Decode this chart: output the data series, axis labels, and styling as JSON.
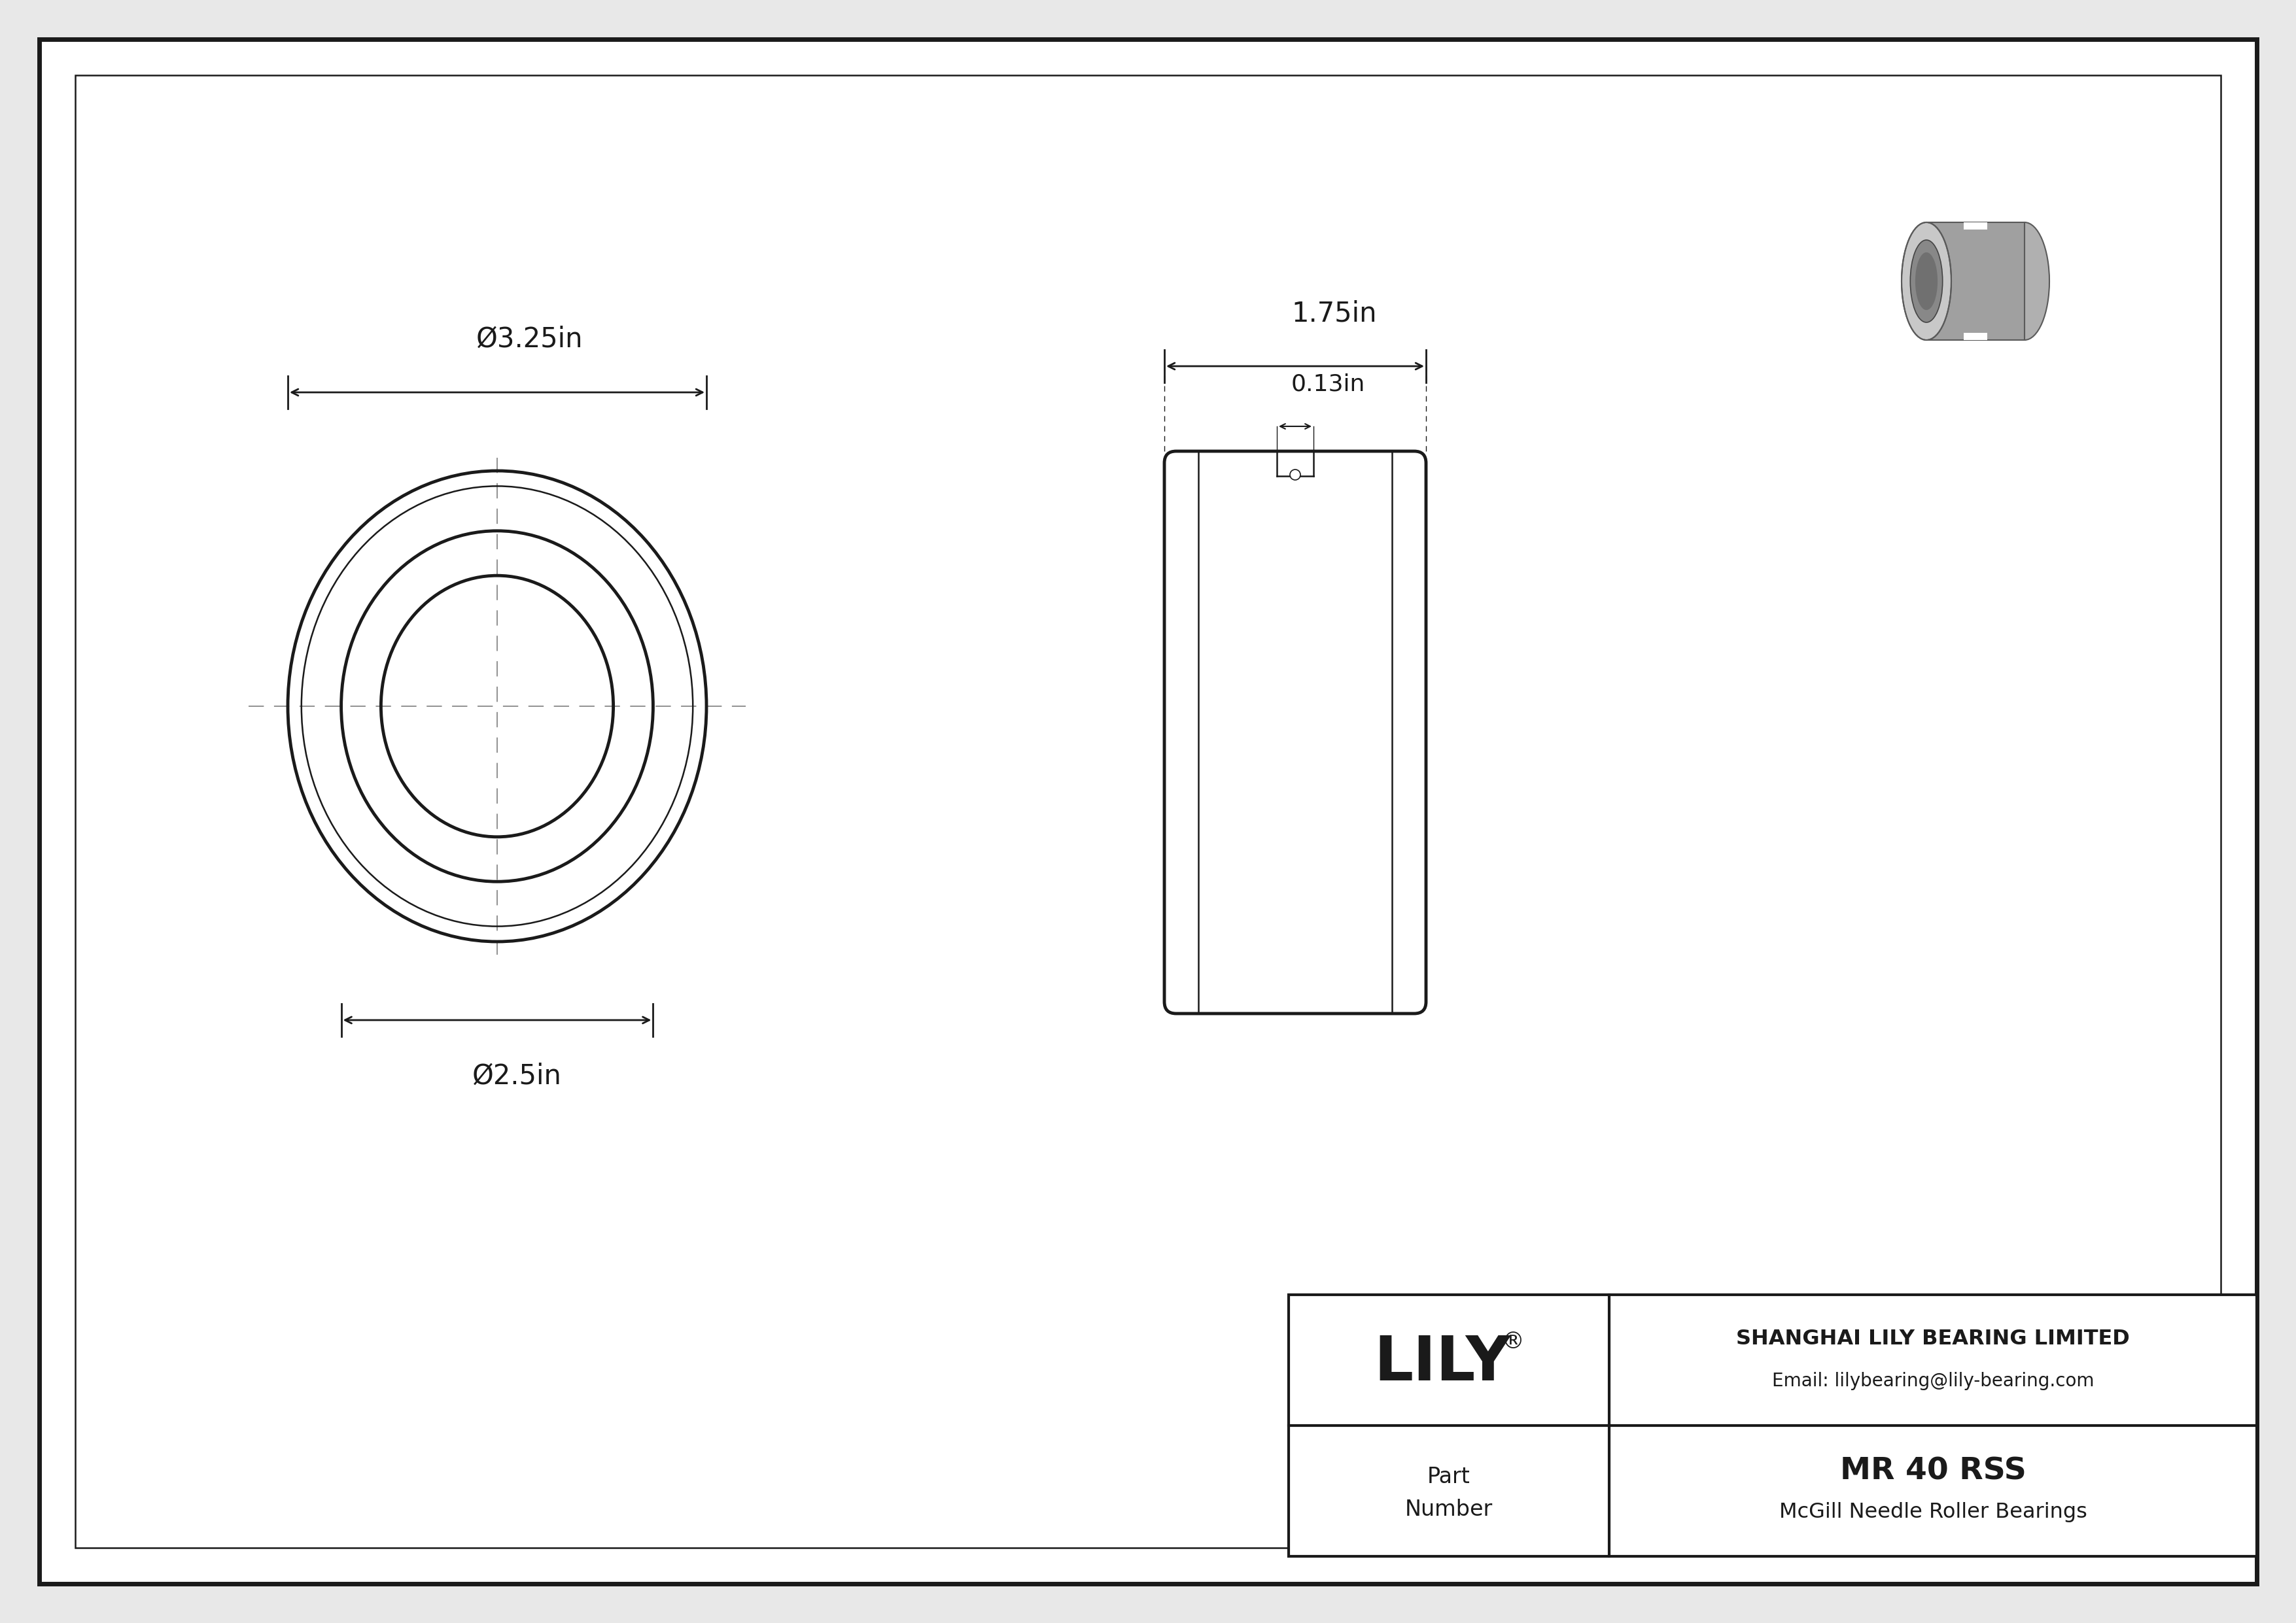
{
  "bg_color": "#e8e8e8",
  "paper_color": "#ffffff",
  "line_color": "#1a1a1a",
  "company_name": "SHANGHAI LILY BEARING LIMITED",
  "company_email": "Email: lilybearing@lily-bearing.com",
  "part_label_1": "Part",
  "part_label_2": "Number",
  "part_number": "MR 40 RSS",
  "part_desc": "McGill Needle Roller Bearings",
  "outer_diameter_label": "Ø3.25in",
  "inner_diameter_label": "Ø2.5in",
  "width_label": "1.75in",
  "groove_label": "0.13in",
  "lw_main": 3.5,
  "lw_thin": 1.8,
  "lw_dim": 2.0,
  "lw_border": 5.0
}
